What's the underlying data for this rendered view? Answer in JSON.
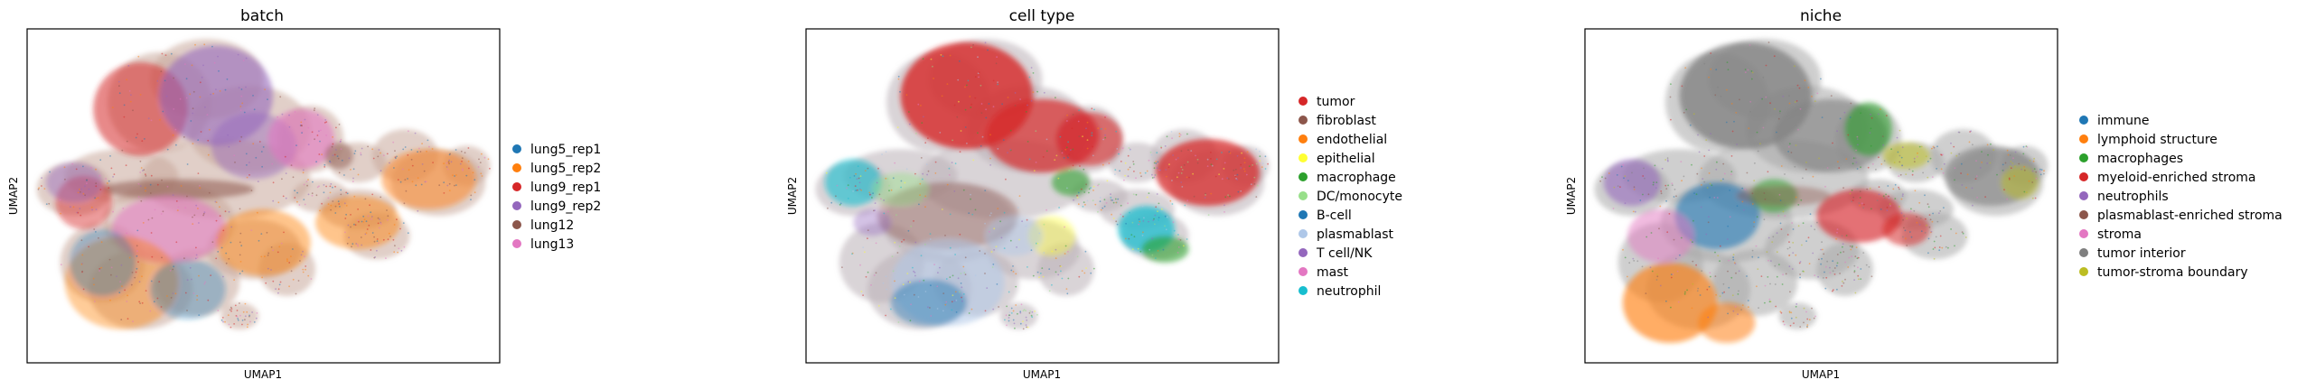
{
  "chart_data": [
    {
      "type": "scatter",
      "title": "batch",
      "xlabel": "UMAP1",
      "ylabel": "UMAP2",
      "grid": false,
      "legend_position": "right",
      "series": [
        {
          "name": "lung5_rep1",
          "color": "#1f77b4"
        },
        {
          "name": "lung5_rep2",
          "color": "#ff7f0e"
        },
        {
          "name": "lung9_rep1",
          "color": "#d62728"
        },
        {
          "name": "lung9_rep2",
          "color": "#9467bd"
        },
        {
          "name": "lung12",
          "color": "#8c564b"
        },
        {
          "name": "lung13",
          "color": "#e377c2"
        }
      ]
    },
    {
      "type": "scatter",
      "title": "cell type",
      "xlabel": "UMAP1",
      "ylabel": "UMAP2",
      "grid": false,
      "legend_position": "right",
      "series": [
        {
          "name": "tumor",
          "color": "#d62728"
        },
        {
          "name": "fibroblast",
          "color": "#8c564b"
        },
        {
          "name": "endothelial",
          "color": "#ff7f0e"
        },
        {
          "name": "epithelial",
          "color": "#ffff33"
        },
        {
          "name": "macrophage",
          "color": "#2ca02c"
        },
        {
          "name": "DC/monocyte",
          "color": "#98df8a"
        },
        {
          "name": "B-cell",
          "color": "#1f77b4"
        },
        {
          "name": "plasmablast",
          "color": "#aec7e8"
        },
        {
          "name": "T cell/NK",
          "color": "#9467bd"
        },
        {
          "name": "mast",
          "color": "#e377c2"
        },
        {
          "name": "neutrophil",
          "color": "#17becf"
        }
      ]
    },
    {
      "type": "scatter",
      "title": "niche",
      "xlabel": "UMAP1",
      "ylabel": "UMAP2",
      "grid": false,
      "legend_position": "right",
      "series": [
        {
          "name": "immune",
          "color": "#1f77b4"
        },
        {
          "name": "lymphoid structure",
          "color": "#ff7f0e"
        },
        {
          "name": "macrophages",
          "color": "#2ca02c"
        },
        {
          "name": "myeloid-enriched stroma",
          "color": "#d62728"
        },
        {
          "name": "neutrophils",
          "color": "#9467bd"
        },
        {
          "name": "plasmablast-enriched stroma",
          "color": "#8c564b"
        },
        {
          "name": "stroma",
          "color": "#e377c2"
        },
        {
          "name": "tumor interior",
          "color": "#7f7f7f"
        },
        {
          "name": "tumor-stroma boundary",
          "color": "#bcbd22"
        }
      ]
    }
  ]
}
